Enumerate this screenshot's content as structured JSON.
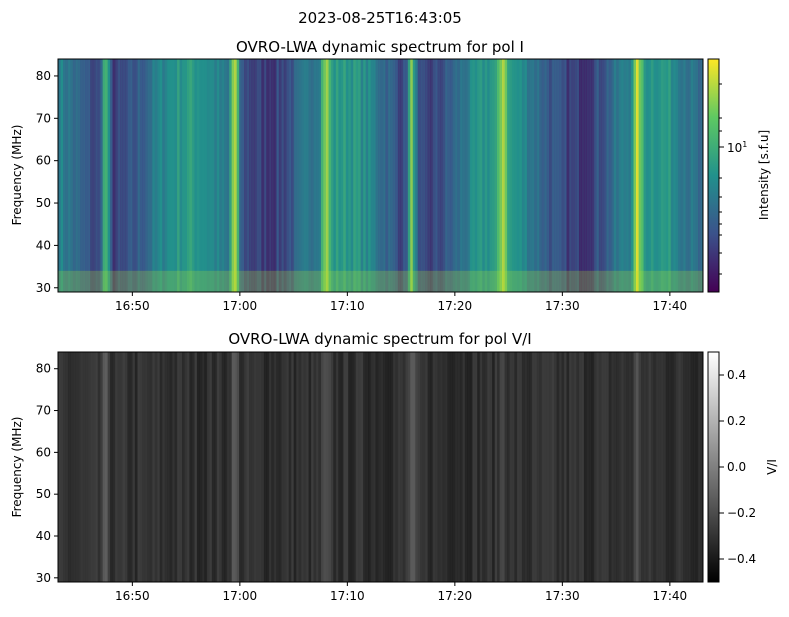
{
  "figure": {
    "suptitle": "2023-08-25T16:43:05"
  },
  "chart_data": [
    {
      "type": "heatmap",
      "title": "OVRO-LWA dynamic spectrum for pol I",
      "ylabel": "Frequency (MHz)",
      "xlabel": "",
      "x_range": [
        "16:43:05",
        "17:43:05"
      ],
      "ylim": [
        29,
        84
      ],
      "x_ticks": [
        "16:50",
        "17:00",
        "17:10",
        "17:20",
        "17:30",
        "17:40"
      ],
      "y_ticks": [
        "30",
        "40",
        "50",
        "60",
        "70",
        "80"
      ],
      "y_tick_values": [
        30,
        40,
        50,
        60,
        70,
        80
      ],
      "colormap": "viridis",
      "colorbar": {
        "label": "Intensity [s.f.u]",
        "scale": "log",
        "tick_label": "10",
        "tick_exponent": "1",
        "tick_value": 10
      },
      "bright_bursts": [
        {
          "time": "16:47:30",
          "level": 0.85
        },
        {
          "time": "16:59:30",
          "level": 1.0
        },
        {
          "time": "17:16:00",
          "level": 0.95
        },
        {
          "time": "17:08:00",
          "level": 0.6
        },
        {
          "time": "17:24:30",
          "level": 0.6
        },
        {
          "time": "17:37:00",
          "level": 0.7
        }
      ]
    },
    {
      "type": "heatmap",
      "title": "OVRO-LWA dynamic spectrum for pol V/I",
      "ylabel": "Frequency (MHz)",
      "xlabel": "",
      "x_range": [
        "16:43:05",
        "17:43:05"
      ],
      "ylim": [
        29,
        84
      ],
      "x_ticks": [
        "16:50",
        "17:00",
        "17:10",
        "17:20",
        "17:30",
        "17:40"
      ],
      "y_ticks": [
        "30",
        "40",
        "50",
        "60",
        "70",
        "80"
      ],
      "y_tick_values": [
        30,
        40,
        50,
        60,
        70,
        80
      ],
      "colormap": "gray",
      "colorbar": {
        "label": "V/I",
        "range": [
          -0.5,
          0.5
        ],
        "ticks": [
          "0.4",
          "0.2",
          "0.0",
          "−0.2",
          "−0.4"
        ],
        "tick_values": [
          0.4,
          0.2,
          0.0,
          -0.2,
          -0.4
        ]
      }
    }
  ]
}
